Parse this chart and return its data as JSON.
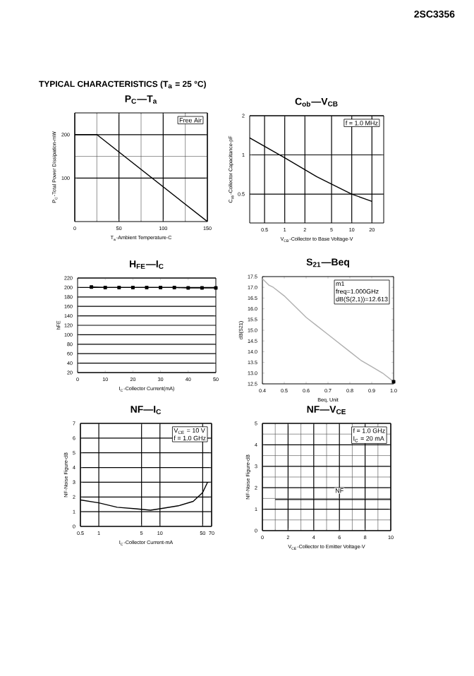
{
  "chart_data": [
    {
      "type": "line",
      "title": "P$_{C}$—T$_{a}$",
      "xlabel": "T$_{a}$-Ambient Temperature-C",
      "ylabel": "P$_{C}$-Total Power Dissipation-mW",
      "xlim": [
        0,
        150
      ],
      "ylim": [
        0,
        250
      ],
      "xticks": [
        0,
        50,
        100,
        150
      ],
      "yticks": [
        100,
        200
      ],
      "grid": true,
      "annotations": [
        "2SC3356",
        "TYPICAL  CHARACTERISTICS (T$_{a}$ = 25 °C)",
        "Free Air"
      ],
      "series": [
        {
          "x": [
            0,
            25,
            150
          ],
          "values": [
            200,
            200,
            0
          ],
          "color": "#000000"
        }
      ]
    },
    {
      "type": "line",
      "title": "C$_{ob}$—V$_{CB}$",
      "xlabel": "V$_{CB}$-Collector to Base Voltage-V",
      "ylabel": "C$_{ob}$-Collector Capacitance-pF",
      "log": "xy",
      "xlim": [
        0.3,
        30
      ],
      "ylim": [
        0.3,
        2
      ],
      "xticks": [
        0.5,
        1,
        2,
        5,
        10,
        20
      ],
      "yticks": [
        0.5,
        1,
        2
      ],
      "grid": true,
      "annotations": [
        "f = 1.0 MHz"
      ],
      "series": [
        {
          "x": [
            0.3,
            1,
            3,
            10,
            20
          ],
          "values": [
            1.35,
            0.95,
            0.68,
            0.5,
            0.44
          ],
          "color": "#000000"
        }
      ]
    },
    {
      "type": "line",
      "title": "H$_{FE}$—I$_{C}$",
      "xlabel": "I$_{C}$-Collector Current(mA)",
      "ylabel": "hFE",
      "xlim": [
        0,
        50
      ],
      "ylim": [
        20,
        220
      ],
      "xticks": [
        0,
        10,
        20,
        30,
        40,
        50
      ],
      "yticks": [
        20,
        40,
        60,
        80,
        100,
        120,
        140,
        160,
        180,
        200,
        220
      ],
      "grid": "y",
      "marker": "square",
      "series": [
        {
          "x": [
            5,
            10,
            15,
            20,
            25,
            30,
            35,
            40,
            45,
            50
          ],
          "values": [
            201,
            200,
            200,
            200,
            200,
            200,
            200,
            199,
            199,
            199
          ],
          "color": "#000000"
        }
      ]
    },
    {
      "type": "line",
      "title": "S$_{21}$—Beq",
      "xlabel": "Beq, Unit",
      "ylabel": "dB(S21)",
      "xlim": [
        0.4,
        1.0
      ],
      "ylim": [
        12.5,
        17.5
      ],
      "xticks": [
        0.4,
        0.5,
        0.6,
        0.7,
        0.8,
        0.9,
        {
          "value": 1.0,
          "label": "1.0"
        }
      ],
      "yticks": [
        12.5,
        {
          "value": 13,
          "label": "13.0"
        },
        13.5,
        {
          "value": 14,
          "label": "14.0"
        },
        14.5,
        {
          "value": 15,
          "label": "15.0"
        },
        15.5,
        {
          "value": 16,
          "label": "16.0"
        },
        16.5,
        {
          "value": 17,
          "label": "17.0"
        },
        17.5
      ],
      "annotations": [
        "m1",
        "freq=1.000GHz",
        "dB(S(2,1))=12.613"
      ],
      "series": [
        {
          "x": [
            0.4,
            0.43,
            0.45,
            0.5,
            0.55,
            0.6,
            0.65,
            0.7,
            0.75,
            0.8,
            0.85,
            0.9,
            0.95,
            1.0
          ],
          "values": [
            17.4,
            17.1,
            17.0,
            16.6,
            16.1,
            15.6,
            15.2,
            14.8,
            14.4,
            14.0,
            13.6,
            13.3,
            13.0,
            12.6
          ],
          "color": "#b0b0b0"
        },
        {
          "type": "scatter",
          "marker": "square",
          "x": [
            1.0
          ],
          "values": [
            12.6
          ],
          "color": "#000000"
        }
      ]
    },
    {
      "type": "line",
      "title": "NF—I$_{C}$",
      "xlabel": "I$_{C}$-Collector Current-mA",
      "ylabel": "NF-Noise Figure-dB",
      "log": "x",
      "xlim": [
        0.5,
        70
      ],
      "ylim": [
        0,
        7
      ],
      "xticks": [
        0.5,
        1,
        5,
        10,
        50,
        70
      ],
      "yticks": [
        0,
        1,
        2,
        3,
        4,
        5,
        6,
        7
      ],
      "grid": true,
      "annotations": [
        "V$_{CE}$ = 10 V",
        "f = 1.0 GHz"
      ],
      "series": [
        {
          "x": [
            0.5,
            1,
            2,
            4,
            7,
            10,
            20,
            35,
            50,
            60
          ],
          "values": [
            1.8,
            1.6,
            1.3,
            1.2,
            1.1,
            1.2,
            1.4,
            1.7,
            2.3,
            3.0
          ],
          "color": "#000000"
        }
      ]
    },
    {
      "type": "line",
      "title": "NF—V$_{CE}$",
      "xlabel": "V$_{CE}$-Collector to Emitter Voltage-V",
      "ylabel": "NF-Noise Figure-dB",
      "xlim": [
        0,
        10
      ],
      "ylim": [
        0,
        5
      ],
      "xticks": [
        0,
        2,
        4,
        6,
        8,
        10
      ],
      "yticks": [
        0,
        1,
        2,
        3,
        4,
        5
      ],
      "grid": true,
      "annotations": [
        "f = 1.0 GHz",
        "I$_{C}$ = 20 mA",
        {
          "text": "NF",
          "x": 6,
          "y": 1.45
        }
      ],
      "series": [
        {
          "x": [
            1,
            2,
            4,
            6,
            8,
            10
          ],
          "values": [
            1.45,
            1.45,
            1.45,
            1.45,
            1.45,
            1.45
          ],
          "color": "#000000"
        }
      ]
    }
  ]
}
